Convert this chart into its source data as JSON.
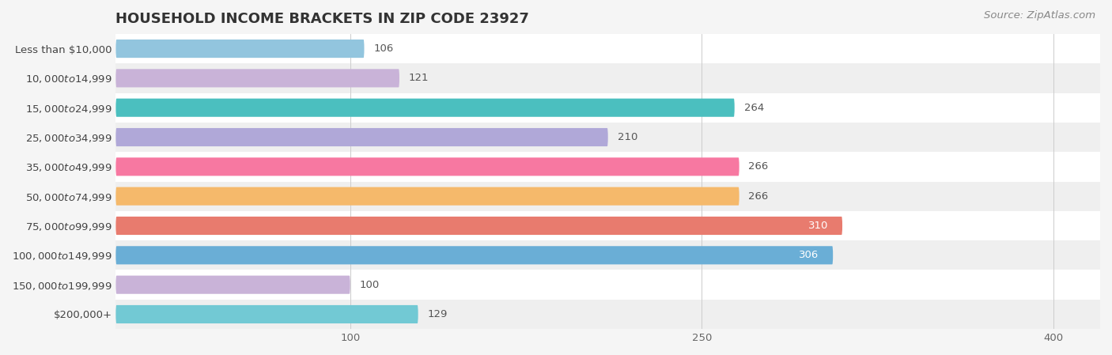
{
  "title": "HOUSEHOLD INCOME BRACKETS IN ZIP CODE 23927",
  "source": "Source: ZipAtlas.com",
  "categories": [
    "Less than $10,000",
    "$10,000 to $14,999",
    "$15,000 to $24,999",
    "$25,000 to $34,999",
    "$35,000 to $49,999",
    "$50,000 to $74,999",
    "$75,000 to $99,999",
    "$100,000 to $149,999",
    "$150,000 to $199,999",
    "$200,000+"
  ],
  "values": [
    106,
    121,
    264,
    210,
    266,
    266,
    310,
    306,
    100,
    129
  ],
  "bar_colors": [
    "#92c5de",
    "#c9b3d8",
    "#4bbfbf",
    "#b0a8d8",
    "#f778a1",
    "#f5b96b",
    "#e87b6e",
    "#6aaed6",
    "#c9b3d8",
    "#72c9d4"
  ],
  "background_color": "#f5f5f5",
  "xlim": [
    0,
    420
  ],
  "xticks": [
    100,
    250,
    400
  ],
  "bar_height": 0.62,
  "title_fontsize": 13,
  "label_fontsize": 9.5,
  "value_fontsize": 9.5,
  "source_fontsize": 9.5
}
